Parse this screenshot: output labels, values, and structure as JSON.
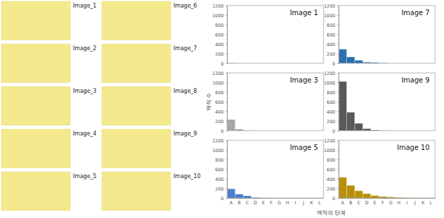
{
  "images": {
    "labels": [
      "Image_1",
      "Image_2",
      "Image_3",
      "Image_4",
      "Image_5",
      "Image_6",
      "Image_7",
      "Image_8",
      "Image_9",
      "Image_10"
    ]
  },
  "shared_axes": {
    "x_label": "액적의 단계",
    "y_label": "액적 수"
  },
  "chart_data": [
    {
      "type": "bar",
      "title": "Image 1",
      "categories": [
        "A",
        "B",
        "C",
        "D",
        "E",
        "F",
        "G",
        "H",
        "I",
        "J",
        "K",
        "L"
      ],
      "values": [
        5,
        0,
        0,
        0,
        0,
        0,
        0,
        0,
        0,
        0,
        0,
        0
      ],
      "color": "#a6a6a6",
      "ylim": [
        0,
        1200
      ],
      "yticks": [
        0,
        200,
        400,
        600,
        800,
        1000,
        1200
      ],
      "tick_labels": "y"
    },
    {
      "type": "bar",
      "title": "Image 7",
      "categories": [
        "A",
        "B",
        "C",
        "D",
        "E",
        "F",
        "G",
        "H",
        "I",
        "J",
        "K",
        "L"
      ],
      "values": [
        290,
        130,
        60,
        20,
        15,
        5,
        0,
        0,
        0,
        0,
        0,
        0
      ],
      "color": "#2e6fb0",
      "ylim": [
        0,
        1200
      ],
      "yticks": [
        0,
        200,
        400,
        600,
        800,
        1000,
        1200
      ],
      "tick_labels": "y"
    },
    {
      "type": "bar",
      "title": "Image 3",
      "categories": [
        "A",
        "B",
        "C",
        "D",
        "E",
        "F",
        "G",
        "H",
        "I",
        "J",
        "K",
        "L"
      ],
      "values": [
        230,
        30,
        5,
        0,
        0,
        0,
        0,
        0,
        0,
        0,
        0,
        0
      ],
      "color": "#a6a6a6",
      "ylim": [
        0,
        1200
      ],
      "yticks": [
        0,
        200,
        400,
        600,
        800,
        1000,
        1200
      ],
      "tick_labels": "y"
    },
    {
      "type": "bar",
      "title": "Image 9",
      "categories": [
        "A",
        "B",
        "C",
        "D",
        "E",
        "F",
        "G",
        "H",
        "I",
        "J",
        "K",
        "L"
      ],
      "values": [
        1020,
        380,
        150,
        40,
        10,
        3,
        0,
        0,
        0,
        0,
        0,
        0
      ],
      "color": "#595959",
      "ylim": [
        0,
        1200
      ],
      "yticks": [
        0,
        200,
        400,
        600,
        800,
        1000,
        1200
      ],
      "tick_labels": "y"
    },
    {
      "type": "bar",
      "title": "Image 5",
      "categories": [
        "A",
        "B",
        "C",
        "D",
        "E",
        "F",
        "G",
        "H",
        "I",
        "J",
        "K",
        "L"
      ],
      "values": [
        190,
        80,
        45,
        10,
        3,
        0,
        0,
        0,
        0,
        0,
        0,
        0
      ],
      "color": "#4a7fd0",
      "ylim": [
        0,
        1200
      ],
      "yticks": [
        0,
        200,
        400,
        600,
        800,
        1000,
        1200
      ]
    },
    {
      "type": "bar",
      "title": "Image 10",
      "categories": [
        "A",
        "B",
        "C",
        "D",
        "E",
        "F",
        "G",
        "H",
        "I",
        "J",
        "K",
        "L"
      ],
      "values": [
        430,
        260,
        150,
        90,
        50,
        30,
        20,
        10,
        5,
        3,
        2,
        1
      ],
      "color": "#b8900a",
      "ylim": [
        0,
        1200
      ],
      "yticks": [
        0,
        200,
        400,
        600,
        800,
        1000,
        1200
      ]
    }
  ]
}
